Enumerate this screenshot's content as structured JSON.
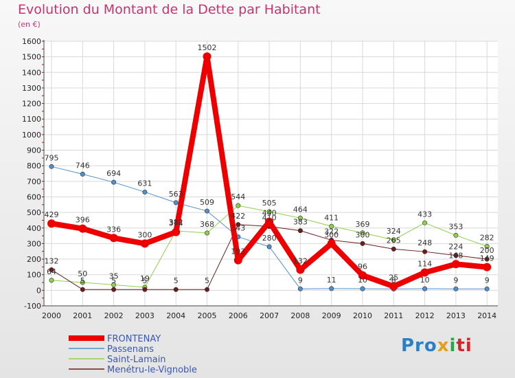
{
  "title": "Evolution du Montant de la Dette par Habitant",
  "subtitle": "(en €)",
  "brand": {
    "parts": [
      "Pro",
      "x",
      "i",
      "ti"
    ]
  },
  "chart_data": {
    "type": "line",
    "x": [
      2000,
      2001,
      2002,
      2003,
      2004,
      2005,
      2006,
      2007,
      2008,
      2009,
      2010,
      2011,
      2012,
      2013,
      2014
    ],
    "ylim": [
      -100,
      1600
    ],
    "yticks": [
      -100,
      0,
      100,
      200,
      300,
      400,
      500,
      600,
      700,
      800,
      900,
      1000,
      1100,
      1200,
      1300,
      1400,
      1500,
      1600
    ],
    "grid": true,
    "legend_position": "bottom-left",
    "series": [
      {
        "name": "Passenans",
        "color": "#4f8fcc",
        "width": 1,
        "values": [
          795,
          746,
          694,
          631,
          563,
          509,
          343,
          280,
          9,
          11,
          10,
          8,
          10,
          9,
          9
        ]
      },
      {
        "name": "Saint-Lamain",
        "color": "#8fd04a",
        "width": 1,
        "values": [
          64,
          50,
          35,
          19,
          382,
          368,
          544,
          505,
          464,
          411,
          369,
          324,
          433,
          353,
          282
        ]
      },
      {
        "name": "Menétru-le-Vignoble",
        "color": "#6b1c1c",
        "width": 1,
        "values": [
          132,
          5,
          5,
          5,
          5,
          5,
          422,
          410,
          383,
          322,
          300,
          265,
          248,
          224,
          200
        ]
      },
      {
        "name": "FRONTENAY",
        "color": "#ee0000",
        "width": 8,
        "values": [
          429,
          396,
          336,
          300,
          374,
          1502,
          193,
          440,
          132,
          300,
          96,
          25,
          114,
          168,
          149
        ]
      }
    ],
    "labels": [
      {
        "v": 795,
        "t": "795",
        "i": 0
      },
      {
        "v": 746,
        "t": "746",
        "i": 1
      },
      {
        "v": 694,
        "t": "694",
        "i": 2
      },
      {
        "v": 631,
        "t": "631",
        "i": 3
      },
      {
        "v": 563,
        "t": "563",
        "i": 4
      },
      {
        "v": 509,
        "t": "509",
        "i": 5
      },
      {
        "v": 343,
        "t": "343",
        "i": 6
      },
      {
        "v": 280,
        "t": "280",
        "i": 7
      },
      {
        "v": 9,
        "t": "9",
        "i": 8
      },
      {
        "v": 11,
        "t": "11",
        "i": 9
      },
      {
        "v": 10,
        "t": "10",
        "i": 10
      },
      {
        "v": 8,
        "t": "8",
        "i": 11
      },
      {
        "v": 10,
        "t": "10",
        "i": 12
      },
      {
        "v": 9,
        "t": "9",
        "i": 13
      },
      {
        "v": 9,
        "t": "9",
        "i": 14
      },
      {
        "v": 64,
        "t": "64",
        "i": 0
      },
      {
        "v": 50,
        "t": "50",
        "i": 1
      },
      {
        "v": 35,
        "t": "35",
        "i": 2
      },
      {
        "v": 19,
        "t": "19",
        "i": 3
      },
      {
        "v": 382,
        "t": "382",
        "i": 4
      },
      {
        "v": 368,
        "t": "368",
        "i": 5
      },
      {
        "v": 544,
        "t": "544",
        "i": 6
      },
      {
        "v": 505,
        "t": "505",
        "i": 7
      },
      {
        "v": 464,
        "t": "464",
        "i": 8
      },
      {
        "v": 411,
        "t": "411",
        "i": 9
      },
      {
        "v": 369,
        "t": "369",
        "i": 10
      },
      {
        "v": 324,
        "t": "324",
        "i": 11
      },
      {
        "v": 433,
        "t": "433",
        "i": 12
      },
      {
        "v": 353,
        "t": "353",
        "i": 13
      },
      {
        "v": 282,
        "t": "282",
        "i": 14
      },
      {
        "v": 132,
        "t": "132",
        "i": 0
      },
      {
        "v": 5,
        "t": "5",
        "i": 1
      },
      {
        "v": 5,
        "t": "5",
        "i": 2
      },
      {
        "v": 5,
        "t": "5",
        "i": 3
      },
      {
        "v": 5,
        "t": "5",
        "i": 4
      },
      {
        "v": 5,
        "t": "5",
        "i": 5
      },
      {
        "v": 422,
        "t": "422",
        "i": 6
      },
      {
        "v": 410,
        "t": "410",
        "i": 7
      },
      {
        "v": 383,
        "t": "383",
        "i": 8
      },
      {
        "v": 322,
        "t": "322",
        "i": 9
      },
      {
        "v": 300,
        "t": "300",
        "i": 10
      },
      {
        "v": 265,
        "t": "265",
        "i": 11
      },
      {
        "v": 248,
        "t": "248",
        "i": 12
      },
      {
        "v": 224,
        "t": "224",
        "i": 13
      },
      {
        "v": 200,
        "t": "200",
        "i": 14
      },
      {
        "v": 429,
        "t": "429",
        "i": 0
      },
      {
        "v": 396,
        "t": "396",
        "i": 1
      },
      {
        "v": 336,
        "t": "336",
        "i": 2
      },
      {
        "v": 300,
        "t": "300",
        "i": 3
      },
      {
        "v": 374,
        "t": "374",
        "i": 4
      },
      {
        "v": 1502,
        "t": "1502",
        "i": 5
      },
      {
        "v": 193,
        "t": "193",
        "i": 6
      },
      {
        "v": 440,
        "t": "440",
        "i": 7
      },
      {
        "v": 132,
        "t": "132",
        "i": 8
      },
      {
        "v": 300,
        "t": "300",
        "i": 9
      },
      {
        "v": 96,
        "t": "96",
        "i": 10
      },
      {
        "v": 25,
        "t": "25",
        "i": 11
      },
      {
        "v": 114,
        "t": "114",
        "i": 12
      },
      {
        "v": 168,
        "t": "168",
        "i": 13
      },
      {
        "v": 149,
        "t": "149",
        "i": 14
      }
    ]
  }
}
